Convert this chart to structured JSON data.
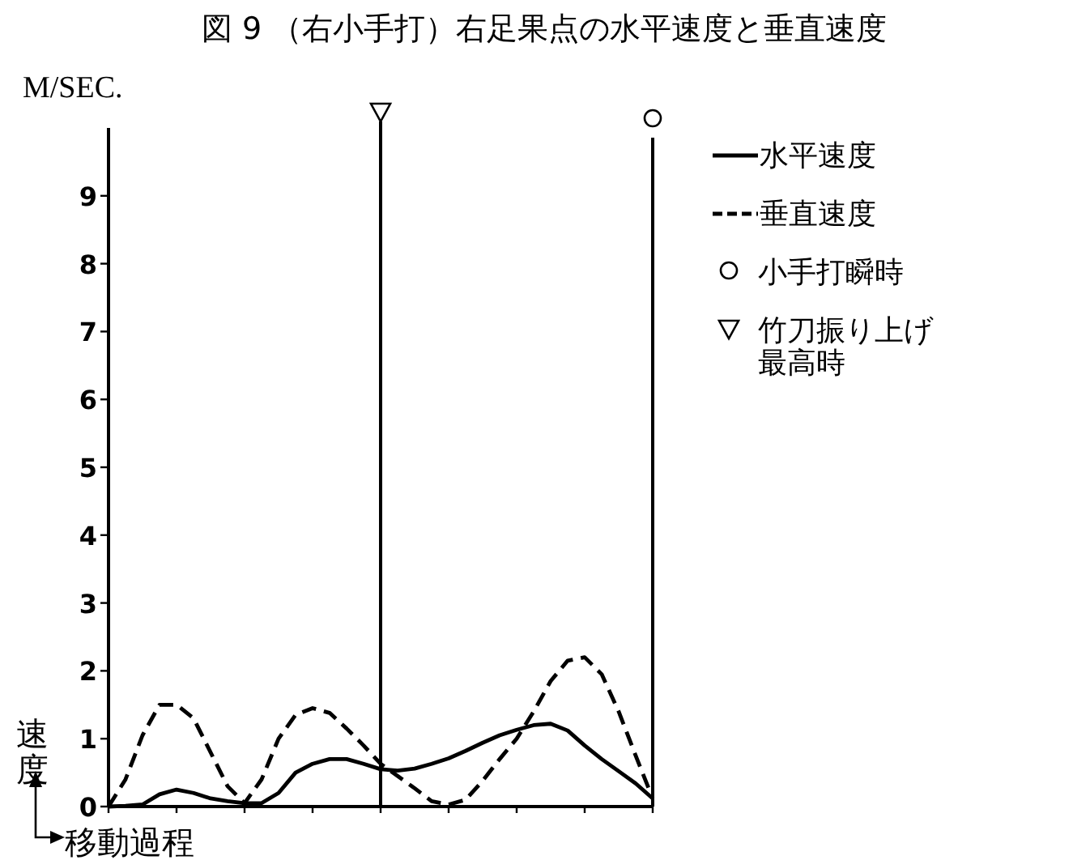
{
  "chart_data": {
    "type": "line",
    "title": "図 9 （右小手打）右足果点の水平速度と垂直速度",
    "xlabel": "移動過程",
    "ylabel": "速度",
    "annotations": [
      "M/SEC.",
      "小手打瞬時",
      "竹刀振り上げ最高時"
    ],
    "categories": [
      null,
      null,
      null,
      null,
      null,
      null,
      null,
      null,
      null,
      null,
      null,
      null,
      null,
      null,
      null,
      null,
      null,
      null,
      null,
      null,
      null,
      null,
      null,
      null,
      null,
      null,
      null,
      null,
      null,
      null,
      null,
      null,
      null
    ],
    "ylim": [
      0,
      10
    ],
    "yticks": [
      0,
      1,
      2,
      3,
      4,
      5,
      6,
      7,
      8,
      9
    ],
    "legend": "right",
    "marker": "none",
    "series": [
      {
        "name": "水平速度",
        "color": "#000000",
        "line_style": "solid",
        "values": [
          0,
          0.01,
          0.03,
          0.18,
          0.25,
          0.2,
          0.12,
          0.08,
          0.05,
          0.05,
          0.2,
          0.5,
          0.63,
          0.7,
          0.7,
          0.63,
          0.55,
          0.53,
          0.56,
          0.63,
          0.71,
          0.82,
          0.94,
          1.05,
          1.13,
          1.2,
          1.22,
          1.12,
          0.9,
          0.7,
          0.52,
          0.34,
          0.12
        ]
      },
      {
        "name": "垂直速度",
        "color": "#000000",
        "line_style": "dashed",
        "values": [
          0,
          0.4,
          1.05,
          1.5,
          1.5,
          1.3,
          0.8,
          0.3,
          0.05,
          0.4,
          1.0,
          1.35,
          1.45,
          1.38,
          1.15,
          0.9,
          0.63,
          0.45,
          0.27,
          0.08,
          0.03,
          0.1,
          0.38,
          0.7,
          1.0,
          1.4,
          1.85,
          2.15,
          2.2,
          1.95,
          1.4,
          0.75,
          0.12
        ]
      }
    ]
  }
}
